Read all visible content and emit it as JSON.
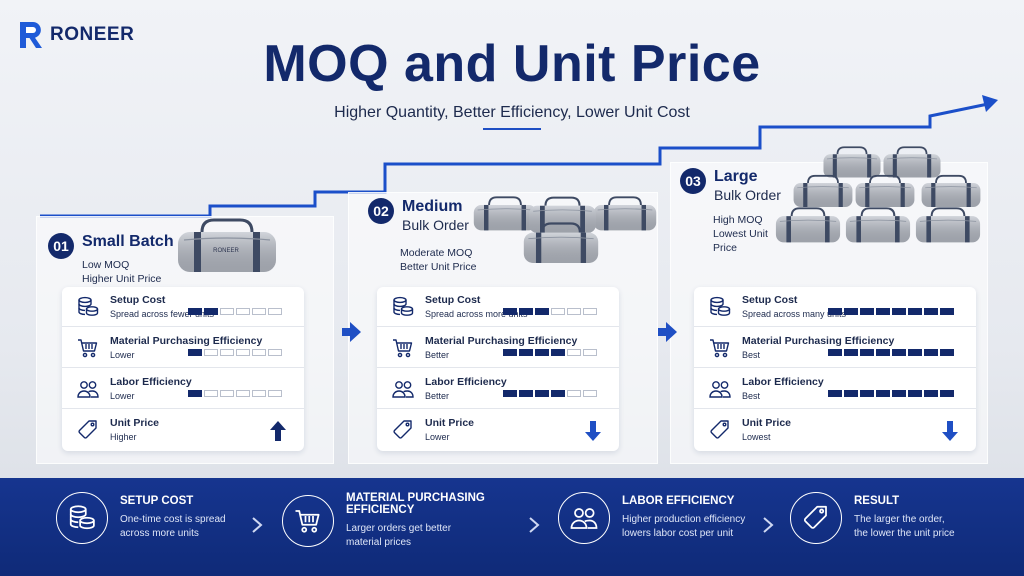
{
  "brand": {
    "name": "RONEER"
  },
  "header": {
    "title": "MOQ and Unit Price",
    "subtitle": "Higher Quantity, Better Efficiency, Lower Unit Cost"
  },
  "colors": {
    "navy": "#13296b",
    "accent": "#1f4fc4",
    "band": "#13318a",
    "bar_off": "#ffffff"
  },
  "bag_label": "RONEER",
  "steps": [
    {
      "number": "01",
      "name": "Small Batch",
      "name_line2": "",
      "desc_1": "Low MOQ",
      "desc_2": "Higher Unit Price",
      "rows": [
        {
          "icon": "coins-icon",
          "label": "Setup Cost",
          "value": "Spread across fewer units",
          "level": 2,
          "max": 6
        },
        {
          "icon": "cart-icon",
          "label": "Material Purchasing Efficiency",
          "value": "Lower",
          "level": 1,
          "max": 6
        },
        {
          "icon": "people-icon",
          "label": "Labor Efficiency",
          "value": "Lower",
          "level": 1,
          "max": 6
        },
        {
          "icon": "price-tag-icon",
          "label": "Unit Price",
          "value": "Higher",
          "trend": "up"
        }
      ]
    },
    {
      "number": "02",
      "name": "Medium",
      "name_line2": "Bulk Order",
      "desc_1": "Moderate MOQ",
      "desc_2": "Better Unit Price",
      "rows": [
        {
          "icon": "coins-icon",
          "label": "Setup Cost",
          "value": "Spread across more units",
          "level": 3,
          "max": 6
        },
        {
          "icon": "cart-icon",
          "label": "Material Purchasing Efficiency",
          "value": "Better",
          "level": 4,
          "max": 6
        },
        {
          "icon": "people-icon",
          "label": "Labor Efficiency",
          "value": "Better",
          "level": 4,
          "max": 6
        },
        {
          "icon": "price-tag-icon",
          "label": "Unit Price",
          "value": "Lower",
          "trend": "down"
        }
      ]
    },
    {
      "number": "03",
      "name": "Large",
      "name_line2": "Bulk Order",
      "desc_1": "High MOQ",
      "desc_2": "Lowest Unit",
      "desc_3": "Price",
      "rows": [
        {
          "icon": "coins-icon",
          "label": "Setup Cost",
          "value": "Spread across many units",
          "level": 8,
          "max": 8
        },
        {
          "icon": "cart-icon",
          "label": "Material Purchasing Efficiency",
          "value": "Best",
          "level": 8,
          "max": 8
        },
        {
          "icon": "people-icon",
          "label": "Labor Efficiency",
          "value": "Best",
          "level": 8,
          "max": 8
        },
        {
          "icon": "price-tag-icon",
          "label": "Unit Price",
          "value": "Lowest",
          "trend": "down"
        }
      ]
    }
  ],
  "summary": [
    {
      "icon": "coins-icon",
      "title": "SETUP COST",
      "desc_1": "One-time cost is spread",
      "desc_2": "across more units"
    },
    {
      "icon": "cart-icon",
      "title": "MATERIAL PURCHASING EFFICIENCY",
      "desc_1": "Larger orders get better",
      "desc_2": "material prices"
    },
    {
      "icon": "people-icon",
      "title": "LABOR EFFICIENCY",
      "desc_1": "Higher production efficiency",
      "desc_2": "lowers labor cost per unit"
    },
    {
      "icon": "price-tag-icon",
      "title": "RESULT",
      "desc_1": "The larger the order,",
      "desc_2": "the lower the unit price"
    }
  ]
}
